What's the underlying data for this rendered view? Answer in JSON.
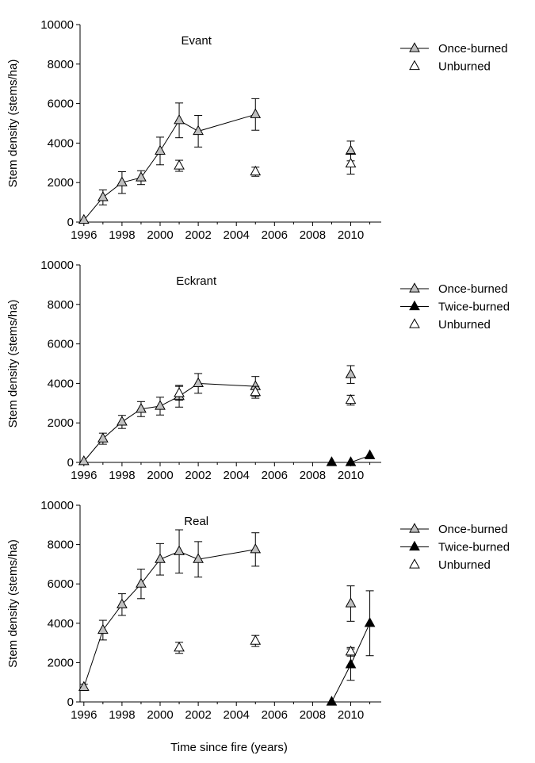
{
  "figure": {
    "xlabel": "Time since fire (years)"
  },
  "chart_data": [
    {
      "type": "line",
      "title": "Evant",
      "xlabel": "",
      "ylabel": "Stem density (stems/ha)",
      "xlim": [
        1995.8,
        2011.6
      ],
      "ylim": [
        0,
        10000
      ],
      "xticks": [
        1996,
        1998,
        2000,
        2002,
        2004,
        2006,
        2008,
        2010
      ],
      "yticks": [
        0,
        2000,
        4000,
        6000,
        8000,
        10000
      ],
      "legend_position": "right",
      "series": [
        {
          "name": "Once-burned",
          "marker": "triangle",
          "fill": "#c0c0c0",
          "connected": true,
          "points": [
            {
              "x": 1996,
              "y": 100,
              "err": 0
            },
            {
              "x": 1997,
              "y": 1250,
              "err": 380
            },
            {
              "x": 1998,
              "y": 2000,
              "err": 550
            },
            {
              "x": 1999,
              "y": 2250,
              "err": 350
            },
            {
              "x": 2000,
              "y": 3600,
              "err": 700
            },
            {
              "x": 2001,
              "y": 5150,
              "err": 880
            },
            {
              "x": 2002,
              "y": 4600,
              "err": 800
            },
            {
              "x": 2005,
              "y": 5450,
              "err": 800
            }
          ]
        },
        {
          "name": "Once-burned",
          "marker": "triangle",
          "fill": "#c0c0c0",
          "connected": false,
          "legend": false,
          "points": [
            {
              "x": 2010,
              "y": 3600,
              "err": 500
            }
          ]
        },
        {
          "name": "Unburned",
          "marker": "triangle",
          "fill": "#ffffff",
          "connected": false,
          "points": [
            {
              "x": 2001,
              "y": 2850,
              "err": 280
            },
            {
              "x": 2005,
              "y": 2550,
              "err": 230
            },
            {
              "x": 2010,
              "y": 2950,
              "err": 520
            }
          ]
        }
      ]
    },
    {
      "type": "line",
      "title": "Eckrant",
      "xlabel": "",
      "ylabel": "Stem density (stems/ha)",
      "xlim": [
        1995.8,
        2011.6
      ],
      "ylim": [
        0,
        10000
      ],
      "xticks": [
        1996,
        1998,
        2000,
        2002,
        2004,
        2006,
        2008,
        2010
      ],
      "yticks": [
        0,
        2000,
        4000,
        6000,
        8000,
        10000
      ],
      "legend_position": "right",
      "series": [
        {
          "name": "Once-burned",
          "marker": "triangle",
          "fill": "#c0c0c0",
          "connected": true,
          "points": [
            {
              "x": 1996,
              "y": 50,
              "err": 0
            },
            {
              "x": 1997,
              "y": 1200,
              "err": 280
            },
            {
              "x": 1998,
              "y": 2050,
              "err": 330
            },
            {
              "x": 1999,
              "y": 2700,
              "err": 380
            },
            {
              "x": 2000,
              "y": 2850,
              "err": 450
            },
            {
              "x": 2001,
              "y": 3350,
              "err": 550
            },
            {
              "x": 2002,
              "y": 4000,
              "err": 500
            },
            {
              "x": 2005,
              "y": 3850,
              "err": 500
            }
          ]
        },
        {
          "name": "Once-burned",
          "marker": "triangle",
          "fill": "#c0c0c0",
          "connected": false,
          "legend": false,
          "points": [
            {
              "x": 2010,
              "y": 4450,
              "err": 450
            }
          ]
        },
        {
          "name": "Twice-burned",
          "marker": "triangle",
          "fill": "#000000",
          "connected": true,
          "points": [
            {
              "x": 2009,
              "y": 0,
              "err": 0
            },
            {
              "x": 2010,
              "y": 0,
              "err": 0
            },
            {
              "x": 2011,
              "y": 350,
              "err": 0
            }
          ]
        },
        {
          "name": "Unburned",
          "marker": "triangle",
          "fill": "#ffffff",
          "connected": false,
          "points": [
            {
              "x": 2001,
              "y": 3500,
              "err": 350
            },
            {
              "x": 2005,
              "y": 3550,
              "err": 300
            },
            {
              "x": 2010,
              "y": 3150,
              "err": 250
            }
          ]
        }
      ]
    },
    {
      "type": "line",
      "title": "Real",
      "xlabel": "",
      "ylabel": "Stem density (stems/ha)",
      "xlim": [
        1995.8,
        2011.6
      ],
      "ylim": [
        0,
        10000
      ],
      "xticks": [
        1996,
        1998,
        2000,
        2002,
        2004,
        2006,
        2008,
        2010
      ],
      "yticks": [
        0,
        2000,
        4000,
        6000,
        8000,
        10000
      ],
      "legend_position": "right",
      "series": [
        {
          "name": "Once-burned",
          "marker": "triangle",
          "fill": "#c0c0c0",
          "connected": true,
          "points": [
            {
              "x": 1996,
              "y": 750,
              "err": 150
            },
            {
              "x": 1997,
              "y": 3650,
              "err": 500
            },
            {
              "x": 1998,
              "y": 4950,
              "err": 550
            },
            {
              "x": 1999,
              "y": 6000,
              "err": 750
            },
            {
              "x": 2000,
              "y": 7250,
              "err": 800
            },
            {
              "x": 2001,
              "y": 7650,
              "err": 1100
            },
            {
              "x": 2002,
              "y": 7250,
              "err": 900
            },
            {
              "x": 2005,
              "y": 7750,
              "err": 850
            }
          ]
        },
        {
          "name": "Once-burned",
          "marker": "triangle",
          "fill": "#c0c0c0",
          "connected": false,
          "legend": false,
          "points": [
            {
              "x": 2010,
              "y": 5000,
              "err": 900
            }
          ]
        },
        {
          "name": "Twice-burned",
          "marker": "triangle",
          "fill": "#000000",
          "connected": true,
          "points": [
            {
              "x": 2009,
              "y": 0,
              "err": 0
            },
            {
              "x": 2010,
              "y": 1900,
              "err": 800
            },
            {
              "x": 2011,
              "y": 4000,
              "err": 1650
            }
          ]
        },
        {
          "name": "Unburned",
          "marker": "triangle",
          "fill": "#ffffff",
          "connected": false,
          "points": [
            {
              "x": 2001,
              "y": 2750,
              "err": 280
            },
            {
              "x": 2005,
              "y": 3100,
              "err": 280
            },
            {
              "x": 2010,
              "y": 2550,
              "err": 220
            }
          ]
        }
      ]
    }
  ]
}
